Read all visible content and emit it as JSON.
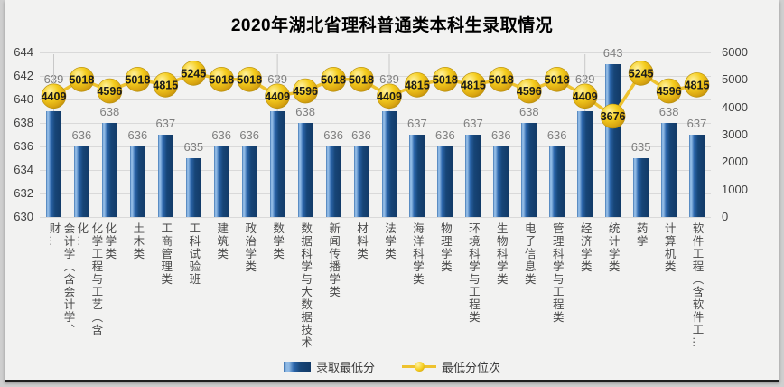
{
  "chart_data": {
    "type": "bar+line combo",
    "title": "2020年湖北省理科普通类本科生录取情况",
    "categories": [
      "会计学（含会计学、财…",
      "化学工程与工艺（含化…",
      "化学类",
      "土木类",
      "工商管理类",
      "工科试验班",
      "建筑类",
      "政治学类",
      "数学类",
      "数据科学与大数据技术",
      "新闻传播学类",
      "材料类",
      "法学类",
      "海洋科学类",
      "物理学类",
      "环境科学与工程类",
      "生物科学类",
      "电子信息类",
      "管理科学与工程类",
      "经济学类",
      "统计学类",
      "药学",
      "计算机类",
      "软件工程（含软件工…"
    ],
    "series": [
      {
        "name": "录取最低分",
        "type": "bar",
        "axis": "left",
        "values": [
          639,
          636,
          638,
          636,
          637,
          635,
          636,
          636,
          639,
          638,
          636,
          636,
          639,
          637,
          636,
          637,
          636,
          638,
          636,
          639,
          643,
          635,
          638,
          637
        ]
      },
      {
        "name": "最低分位次",
        "type": "line",
        "axis": "right",
        "values": [
          4409,
          5018,
          4596,
          5018,
          4815,
          5245,
          5018,
          5018,
          4409,
          4596,
          5018,
          5018,
          4409,
          4815,
          5018,
          4815,
          5018,
          4596,
          5018,
          4409,
          3676,
          5245,
          4596,
          4815
        ]
      }
    ],
    "left_axis": {
      "min": 630,
      "max": 644,
      "step": 2,
      "ticks": [
        644,
        642,
        640,
        638,
        636,
        634,
        632,
        630
      ]
    },
    "right_axis": {
      "min": 0,
      "max": 6000,
      "step": 1000,
      "ticks": [
        6000,
        5000,
        4000,
        3000,
        2000,
        1000,
        0
      ]
    },
    "grid": true,
    "legend_position": "bottom"
  },
  "colors": {
    "page_bg": "#cfcfcf",
    "card_bg": "#f2f2f1",
    "grid": "#d9d9d9",
    "title": "#000000",
    "axis_label": "#404040",
    "bar_label": "#7f7f7f",
    "category_label": "#4a4a4a",
    "bar_main": "#1f4e79",
    "bar_highlight": "#8fb9e4",
    "line": "#eec22e",
    "ball_light": "#fff2a0",
    "ball_mid": "#f5cd1e",
    "ball_dark": "#c2920c",
    "ball_text": "#1a1a1a",
    "drop_line": "#c8c8c8"
  }
}
